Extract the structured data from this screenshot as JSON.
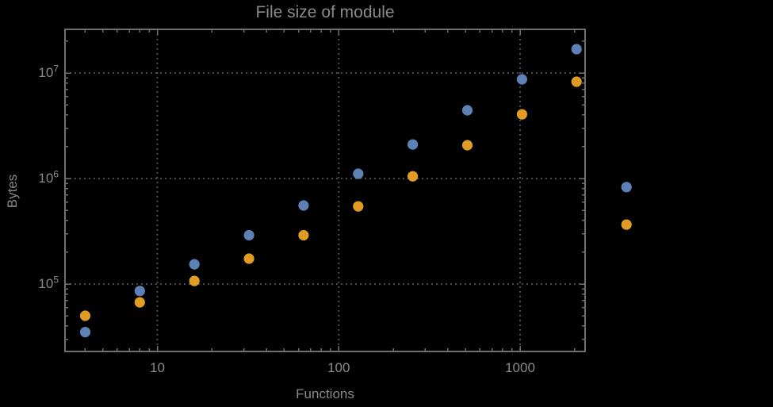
{
  "chart_data": {
    "type": "scatter",
    "title": "File size of module",
    "xlabel": "Functions",
    "ylabel": "Bytes",
    "x_scale": "log",
    "y_scale": "log",
    "x_range": [
      3.1,
      2280
    ],
    "y_range": [
      23000,
      26000000
    ],
    "grid": "dotted at major decades, framed on all four sides, mirrored inward ticks",
    "legend": "none",
    "x_ticks": [
      {
        "value": 10,
        "label": "10"
      },
      {
        "value": 100,
        "label": "100"
      },
      {
        "value": 1000,
        "label": "1000"
      }
    ],
    "y_ticks": [
      {
        "value": 100000,
        "base": "10",
        "exp": "5"
      },
      {
        "value": 1000000,
        "base": "10",
        "exp": "6"
      },
      {
        "value": 10000000,
        "base": "10",
        "exp": "7"
      }
    ],
    "series": [
      {
        "name": "blue",
        "color": "#5e81b5",
        "points": [
          [
            4,
            35000
          ],
          [
            8,
            86000
          ],
          [
            16,
            154000
          ],
          [
            32,
            290000
          ],
          [
            64,
            555000
          ],
          [
            128,
            1110000
          ],
          [
            256,
            2100000
          ],
          [
            512,
            4430000
          ],
          [
            1024,
            8700000
          ],
          [
            2048,
            16800000
          ],
          [
            3860,
            830000
          ]
        ]
      },
      {
        "name": "orange",
        "color": "#e19c24",
        "points": [
          [
            4,
            50000
          ],
          [
            8,
            67000
          ],
          [
            16,
            107000
          ],
          [
            32,
            174000
          ],
          [
            64,
            290000
          ],
          [
            128,
            545000
          ],
          [
            256,
            1050000
          ],
          [
            512,
            2070000
          ],
          [
            1024,
            4060000
          ],
          [
            2048,
            8260000
          ],
          [
            3860,
            366000
          ]
        ]
      }
    ]
  },
  "colors": {
    "background": "#000000",
    "frame": "#6f6f6f",
    "tick": "#6f6f6f",
    "grid": "#5f5f5f",
    "text": "#8a8a8a"
  }
}
